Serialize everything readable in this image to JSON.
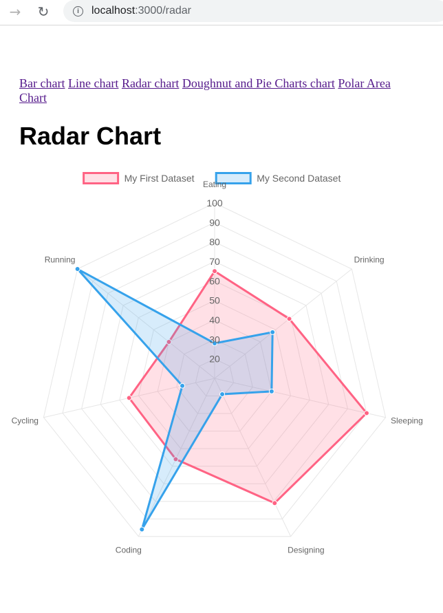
{
  "browser": {
    "url_host": "localhost",
    "url_path": ":3000/radar"
  },
  "nav": {
    "links": [
      "Bar chart",
      "Line chart",
      "Radar chart",
      "Doughnut and Pie Charts chart",
      "Polar Area Chart"
    ]
  },
  "page": {
    "title": "Radar Chart"
  },
  "chart_data": {
    "type": "radar",
    "categories": [
      "Eating",
      "Drinking",
      "Sleeping",
      "Designing",
      "Coding",
      "Cycling",
      "Running"
    ],
    "rlim": [
      10,
      100
    ],
    "ticks": [
      "20",
      "30",
      "40",
      "50",
      "60",
      "70",
      "80",
      "90",
      "100"
    ],
    "legend_position": "top",
    "series": [
      {
        "name": "My First Dataset",
        "values": [
          65,
          59,
          90,
          81,
          56,
          55,
          40
        ],
        "color": "#ff6384",
        "fill": "rgba(255,99,132,0.2)"
      },
      {
        "name": "My Second Dataset",
        "values": [
          28,
          48,
          40,
          19,
          96,
          27,
          100
        ],
        "color": "#36a2eb",
        "fill": "rgba(54,162,235,0.2)"
      }
    ]
  }
}
